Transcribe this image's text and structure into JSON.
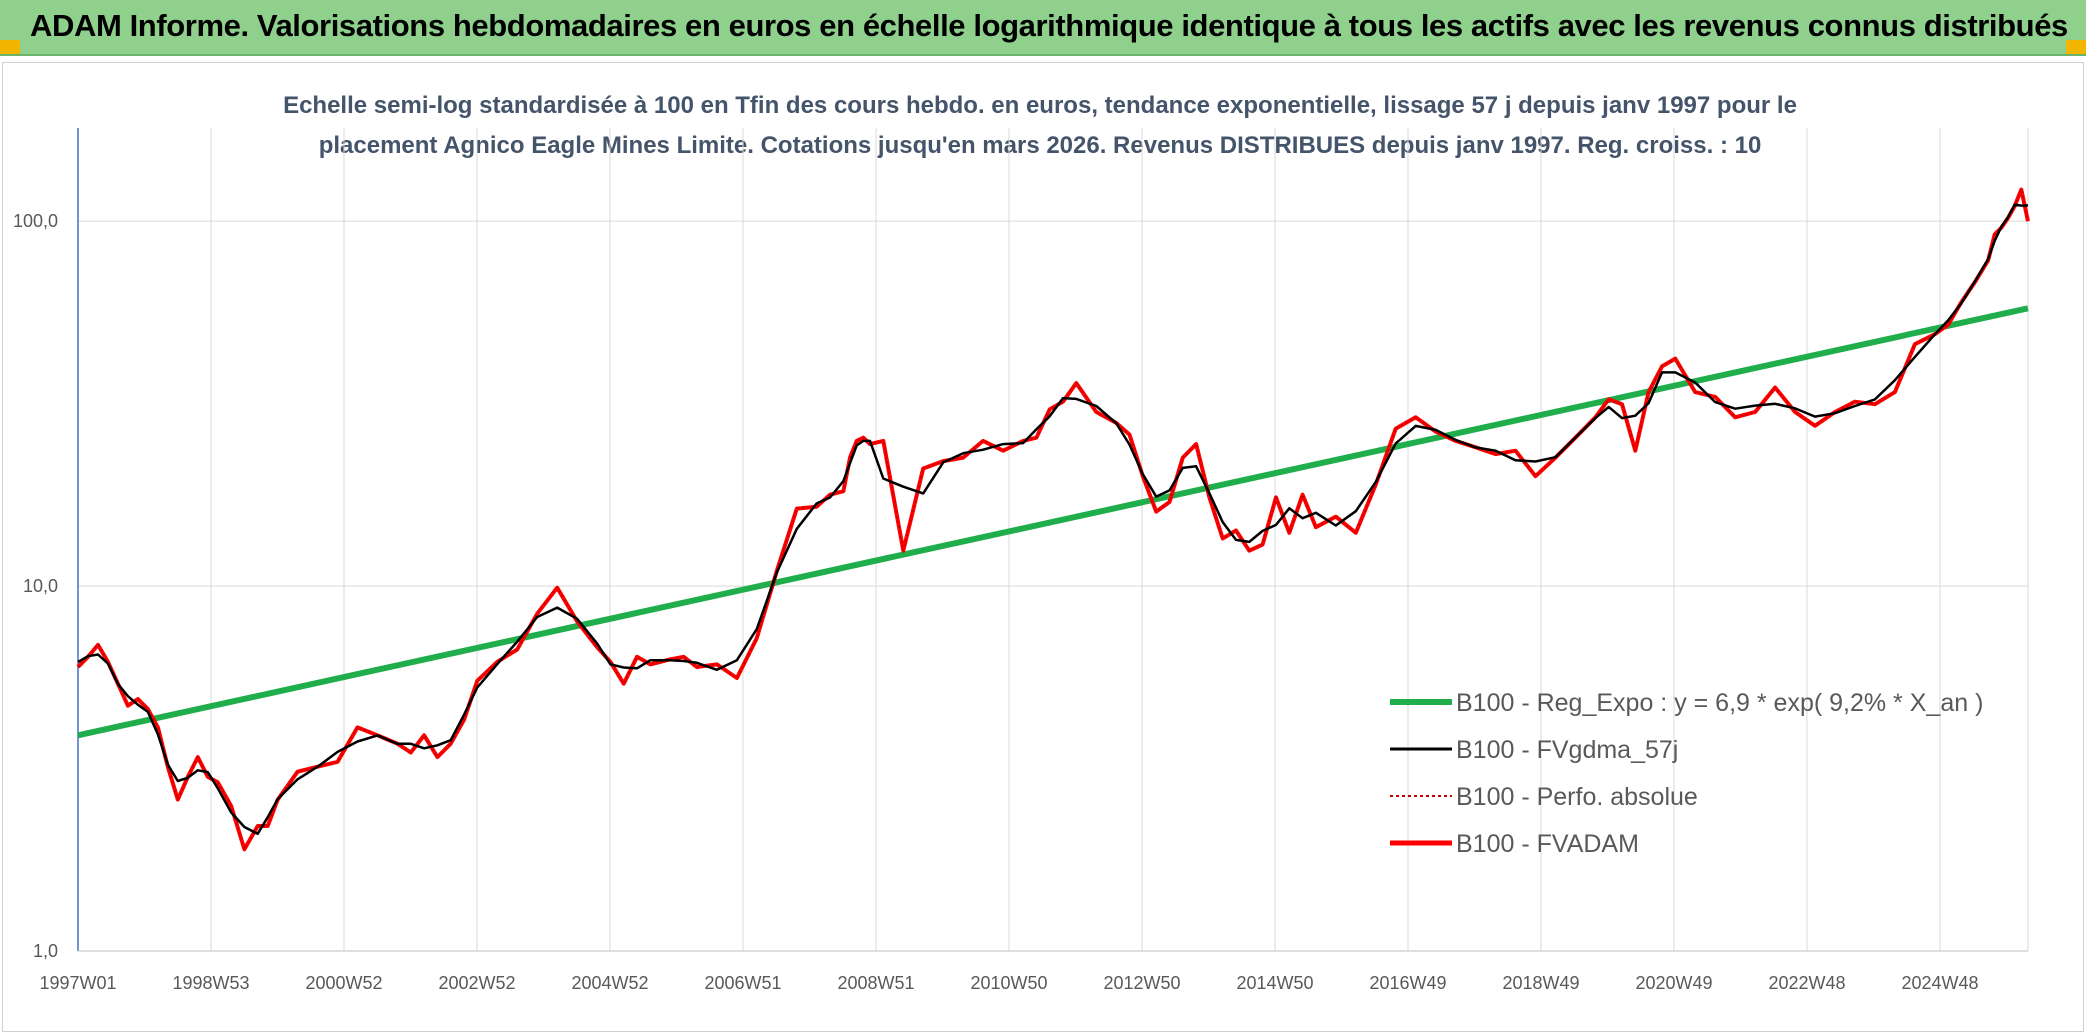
{
  "header": {
    "title": "ADAM Informe. Valorisations hebdomadaires en euros en échelle logarithmique identique à tous les actifs avec les revenus connus distribués"
  },
  "chart_data": {
    "type": "line",
    "title_line1": "Echelle semi-log standardisée à 100 en Tfin des cours hebdo. en euros, tendance exponentielle, lissage 57 j depuis janv 1997 pour le",
    "title_line2": "placement Agnico Eagle Mines Limite. Cotations jusqu'en mars 2026. Revenus DISTRIBUES depuis janv 1997. Reg. croiss. : 10",
    "y_scale": "log",
    "ylim": [
      1,
      180
    ],
    "y_ticks": [
      "1,0",
      "10,0",
      "100,0"
    ],
    "x_ticks": [
      "1997W01",
      "1998W53",
      "2000W52",
      "2002W52",
      "2004W52",
      "2006W51",
      "2008W51",
      "2010W50",
      "2012W50",
      "2014W50",
      "2016W49",
      "2018W49",
      "2020W49",
      "2022W48",
      "2024W48"
    ],
    "xlim": [
      1997.0,
      2026.3
    ],
    "grid": true,
    "legend_position": "right",
    "colors": {
      "trend": "#1fae4b",
      "smooth": "#000000",
      "absolute": "#c00000",
      "adam": "#ff0000",
      "banner": "#8fd18c",
      "subtitle": "#44546a"
    },
    "trend": {
      "name": "B100 - Reg_Expo : y = 6,9 * exp( 9,2% *  X_an )",
      "start": [
        1997.0,
        3.9
      ],
      "end": [
        2026.3,
        57.7
      ]
    },
    "series": [
      {
        "name": "B100 - FVADAM",
        "x": [
          1997.0,
          1997.15,
          1997.3,
          1997.45,
          1997.6,
          1997.75,
          1997.9,
          1998.05,
          1998.2,
          1998.35,
          1998.5,
          1998.65,
          1998.8,
          1998.95,
          1999.1,
          1999.3,
          1999.5,
          1999.7,
          1999.85,
          2000.0,
          2000.3,
          2000.6,
          2000.9,
          2001.2,
          2001.5,
          2001.8,
          2002.0,
          2002.2,
          2002.4,
          2002.6,
          2002.8,
          2003.0,
          2003.3,
          2003.6,
          2003.9,
          2004.2,
          2004.5,
          2004.8,
          2005.0,
          2005.2,
          2005.4,
          2005.6,
          2005.9,
          2006.1,
          2006.3,
          2006.6,
          2006.9,
          2007.2,
          2007.5,
          2007.8,
          2008.1,
          2008.3,
          2008.5,
          2008.6,
          2008.7,
          2008.8,
          2008.9,
          2009.1,
          2009.4,
          2009.7,
          2010.0,
          2010.3,
          2010.6,
          2010.9,
          2011.2,
          2011.4,
          2011.6,
          2011.8,
          2012.0,
          2012.3,
          2012.6,
          2012.8,
          2013.0,
          2013.2,
          2013.4,
          2013.6,
          2013.8,
          2014.0,
          2014.2,
          2014.4,
          2014.6,
          2014.8,
          2015.0,
          2015.2,
          2015.4,
          2015.6,
          2015.9,
          2016.2,
          2016.5,
          2016.8,
          2017.1,
          2017.4,
          2017.7,
          2018.0,
          2018.3,
          2018.6,
          2018.9,
          2019.2,
          2019.5,
          2019.8,
          2020.0,
          2020.2,
          2020.4,
          2020.6,
          2020.8,
          2021.0,
          2021.3,
          2021.6,
          2021.9,
          2022.2,
          2022.5,
          2022.8,
          2023.1,
          2023.4,
          2023.7,
          2024.0,
          2024.3,
          2024.6,
          2024.9,
          2025.1,
          2025.3,
          2025.5,
          2025.7,
          2025.8,
          2025.9,
          2026.0,
          2026.1,
          2026.2,
          2026.3
        ],
        "y": [
          6.0,
          6.4,
          6.9,
          6.2,
          5.4,
          4.7,
          4.9,
          4.6,
          4.1,
          3.2,
          2.6,
          3.0,
          3.4,
          3.0,
          2.9,
          2.5,
          1.9,
          2.2,
          2.2,
          2.6,
          3.1,
          3.2,
          3.3,
          4.1,
          3.9,
          3.7,
          3.5,
          3.9,
          3.4,
          3.7,
          4.3,
          5.5,
          6.2,
          6.7,
          8.4,
          9.9,
          8.0,
          6.8,
          6.2,
          5.4,
          6.4,
          6.1,
          6.3,
          6.4,
          6.0,
          6.1,
          5.6,
          7.2,
          11.0,
          16.3,
          16.5,
          17.8,
          18.2,
          22.5,
          25.0,
          25.5,
          24.5,
          25.0,
          12.5,
          21.0,
          22.0,
          22.5,
          25.0,
          23.5,
          25.0,
          25.5,
          30.5,
          32.0,
          36.0,
          30.0,
          28.0,
          26.0,
          20.0,
          16.0,
          17.0,
          22.5,
          24.5,
          17.5,
          13.5,
          14.2,
          12.5,
          13.0,
          17.5,
          14.0,
          17.8,
          14.5,
          15.5,
          14.0,
          19.0,
          27.0,
          29.0,
          26.5,
          25.0,
          24.0,
          23.0,
          23.5,
          20.0,
          22.5,
          25.5,
          29.0,
          32.5,
          31.5,
          23.5,
          34.0,
          40.0,
          42.0,
          34.0,
          33.0,
          29.0,
          30.0,
          35.0,
          30.0,
          27.5,
          30.0,
          32.0,
          31.5,
          34.0,
          46.0,
          49.0,
          52.0,
          60.0,
          68.0,
          78.0,
          92.0,
          96.0,
          102.0,
          110.0,
          122.0,
          100.0
        ]
      }
    ],
    "legend": [
      "B100 - Reg_Expo : y = 6,9 * exp( 9,2% *  X_an )",
      "B100 - FVgdma_57j",
      "B100 - Perfo. absolue",
      "B100 - FVADAM"
    ]
  }
}
